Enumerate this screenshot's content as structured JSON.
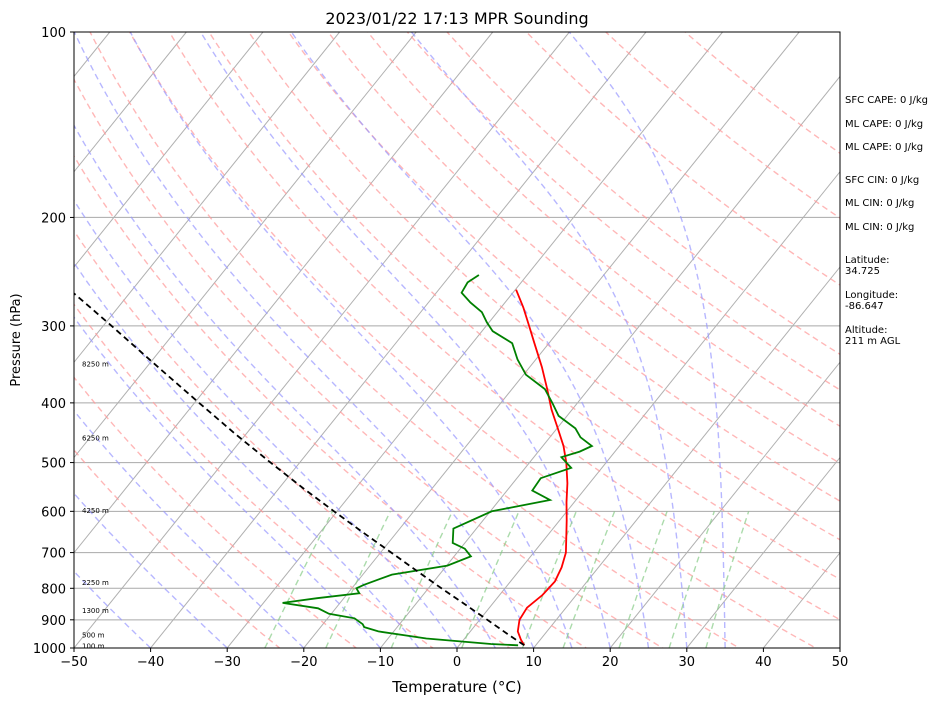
{
  "chart_data": {
    "type": "line",
    "chart_kind": "skew-T log-P sounding",
    "title": "2023/01/22 17:13 MPR Sounding",
    "xlabel": "Temperature (°C)",
    "ylabel": "Pressure (hPa)",
    "xlim": [
      -50,
      50
    ],
    "ylim": [
      1000,
      100
    ],
    "y_scale": "log",
    "grid": true,
    "x_ticks": [
      "−50",
      "−40",
      "−30",
      "−20",
      "−10",
      "0",
      "10",
      "20",
      "30",
      "40",
      "50"
    ],
    "x_tick_values": [
      -50,
      -40,
      -30,
      -20,
      -10,
      0,
      10,
      20,
      30,
      40,
      50
    ],
    "y_ticks": [
      "100",
      "200",
      "300",
      "400",
      "500",
      "600",
      "700",
      "800",
      "900",
      "1000"
    ],
    "y_tick_values": [
      100,
      200,
      300,
      400,
      500,
      600,
      700,
      800,
      900,
      1000
    ],
    "height_labels": [
      {
        "text": "8250 m",
        "p": 345
      },
      {
        "text": "6250 m",
        "p": 455
      },
      {
        "text": "4250 m",
        "p": 597
      },
      {
        "text": "2250 m",
        "p": 782
      },
      {
        "text": "1300 m",
        "p": 867
      },
      {
        "text": "500 m",
        "p": 950
      },
      {
        "text": "100 m",
        "p": 991
      }
    ],
    "series": [
      {
        "color": "#ff0000",
        "role": "temperature",
        "points": [
          {
            "p": 990,
            "t": 8.5
          },
          {
            "p": 970,
            "t": 7.5
          },
          {
            "p": 940,
            "t": 6.2
          },
          {
            "p": 900,
            "t": 5.2
          },
          {
            "p": 860,
            "t": 4.9
          },
          {
            "p": 820,
            "t": 5.6
          },
          {
            "p": 780,
            "t": 5.8
          },
          {
            "p": 740,
            "t": 5.2
          },
          {
            "p": 700,
            "t": 4.2
          },
          {
            "p": 660,
            "t": 2.6
          },
          {
            "p": 620,
            "t": 0.9
          },
          {
            "p": 580,
            "t": -1.0
          },
          {
            "p": 540,
            "t": -2.9
          },
          {
            "p": 500,
            "t": -5.2
          },
          {
            "p": 470,
            "t": -7.3
          },
          {
            "p": 440,
            "t": -9.9
          },
          {
            "p": 410,
            "t": -12.7
          },
          {
            "p": 380,
            "t": -15.4
          },
          {
            "p": 350,
            "t": -18.4
          },
          {
            "p": 320,
            "t": -21.9
          },
          {
            "p": 300,
            "t": -24.4
          },
          {
            "p": 280,
            "t": -27.1
          },
          {
            "p": 262,
            "t": -29.9
          }
        ]
      },
      {
        "color": "#008000",
        "role": "dewpoint",
        "points": [
          {
            "p": 990,
            "t": 7.7
          },
          {
            "p": 985,
            "t": 4.0
          },
          {
            "p": 965,
            "t": -5.0
          },
          {
            "p": 940,
            "t": -12.0
          },
          {
            "p": 925,
            "t": -14.3
          },
          {
            "p": 915,
            "t": -14.8
          },
          {
            "p": 895,
            "t": -16.5
          },
          {
            "p": 880,
            "t": -20.3
          },
          {
            "p": 862,
            "t": -22.3
          },
          {
            "p": 845,
            "t": -27.5
          },
          {
            "p": 830,
            "t": -23.5
          },
          {
            "p": 815,
            "t": -18.5
          },
          {
            "p": 800,
            "t": -19.4
          },
          {
            "p": 790,
            "t": -18.8
          },
          {
            "p": 760,
            "t": -16.2
          },
          {
            "p": 735,
            "t": -9.9
          },
          {
            "p": 710,
            "t": -7.8
          },
          {
            "p": 690,
            "t": -9.4
          },
          {
            "p": 675,
            "t": -11.6
          },
          {
            "p": 640,
            "t": -13.0
          },
          {
            "p": 600,
            "t": -9.8
          },
          {
            "p": 575,
            "t": -3.4
          },
          {
            "p": 555,
            "t": -6.7
          },
          {
            "p": 530,
            "t": -6.9
          },
          {
            "p": 510,
            "t": -4.0
          },
          {
            "p": 490,
            "t": -6.4
          },
          {
            "p": 480,
            "t": -4.6
          },
          {
            "p": 470,
            "t": -3.6
          },
          {
            "p": 455,
            "t": -6.0
          },
          {
            "p": 440,
            "t": -7.6
          },
          {
            "p": 420,
            "t": -11.1
          },
          {
            "p": 400,
            "t": -13.3
          },
          {
            "p": 380,
            "t": -15.7
          },
          {
            "p": 360,
            "t": -19.7
          },
          {
            "p": 340,
            "t": -22.4
          },
          {
            "p": 320,
            "t": -24.8
          },
          {
            "p": 306,
            "t": -28.6
          },
          {
            "p": 296,
            "t": -30.3
          },
          {
            "p": 285,
            "t": -32.0
          },
          {
            "p": 275,
            "t": -34.5
          },
          {
            "p": 265,
            "t": -36.7
          },
          {
            "p": 255,
            "t": -37.0
          },
          {
            "p": 248,
            "t": -36.3
          }
        ]
      },
      {
        "color": "#000000",
        "role": "parcel",
        "dashed": true,
        "points": [
          {
            "p": 990,
            "t": 8.5
          },
          {
            "p": 950,
            "t": 5.2
          },
          {
            "p": 900,
            "t": 1.0
          },
          {
            "p": 850,
            "t": -3.5
          },
          {
            "p": 800,
            "t": -8.3
          },
          {
            "p": 750,
            "t": -13.3
          },
          {
            "p": 700,
            "t": -18.6
          },
          {
            "p": 650,
            "t": -24.3
          },
          {
            "p": 600,
            "t": -30.4
          },
          {
            "p": 550,
            "t": -36.9
          },
          {
            "p": 500,
            "t": -43.8
          },
          {
            "p": 450,
            "t": -51.3
          },
          {
            "p": 400,
            "t": -59.4
          },
          {
            "p": 350,
            "t": -68.5
          },
          {
            "p": 300,
            "t": -78.9
          },
          {
            "p": 257,
            "t": -89.5
          }
        ]
      }
    ],
    "reference_lines": {
      "isotherm_color": "#b0b0b0",
      "dry_adiabat_color": "#ff9999",
      "moist_adiabat_color": "#9999ff",
      "mixing_ratio_color": "#88cc88",
      "dry_adiabats_K": [
        250,
        260,
        270,
        280,
        290,
        300,
        310,
        320,
        330,
        340,
        350,
        360,
        370,
        380,
        390,
        400,
        420,
        440,
        460
      ],
      "moist_adiabats_C": [
        -40,
        -30,
        -20,
        -10,
        -5,
        0,
        5,
        10,
        15,
        20,
        25,
        30,
        35
      ],
      "mixing_ratios_gkg": [
        0.5,
        1,
        2,
        4,
        7,
        10,
        16,
        24,
        32
      ]
    }
  },
  "stats": {
    "sfc_cape": "SFC CAPE: 0 J/kg",
    "ml_cape_1": "ML CAPE: 0 J/kg",
    "ml_cape_2": "ML CAPE: 0 J/kg",
    "sfc_cin": "SFC CIN: 0 J/kg",
    "ml_cin_1": "ML CIN: 0 J/kg",
    "ml_cin_2": "ML CIN: 0 J/kg",
    "latitude": "Latitude:\n34.725",
    "longitude": "Longitude:\n-86.647",
    "altitude": "Altitude:\n211 m AGL"
  }
}
